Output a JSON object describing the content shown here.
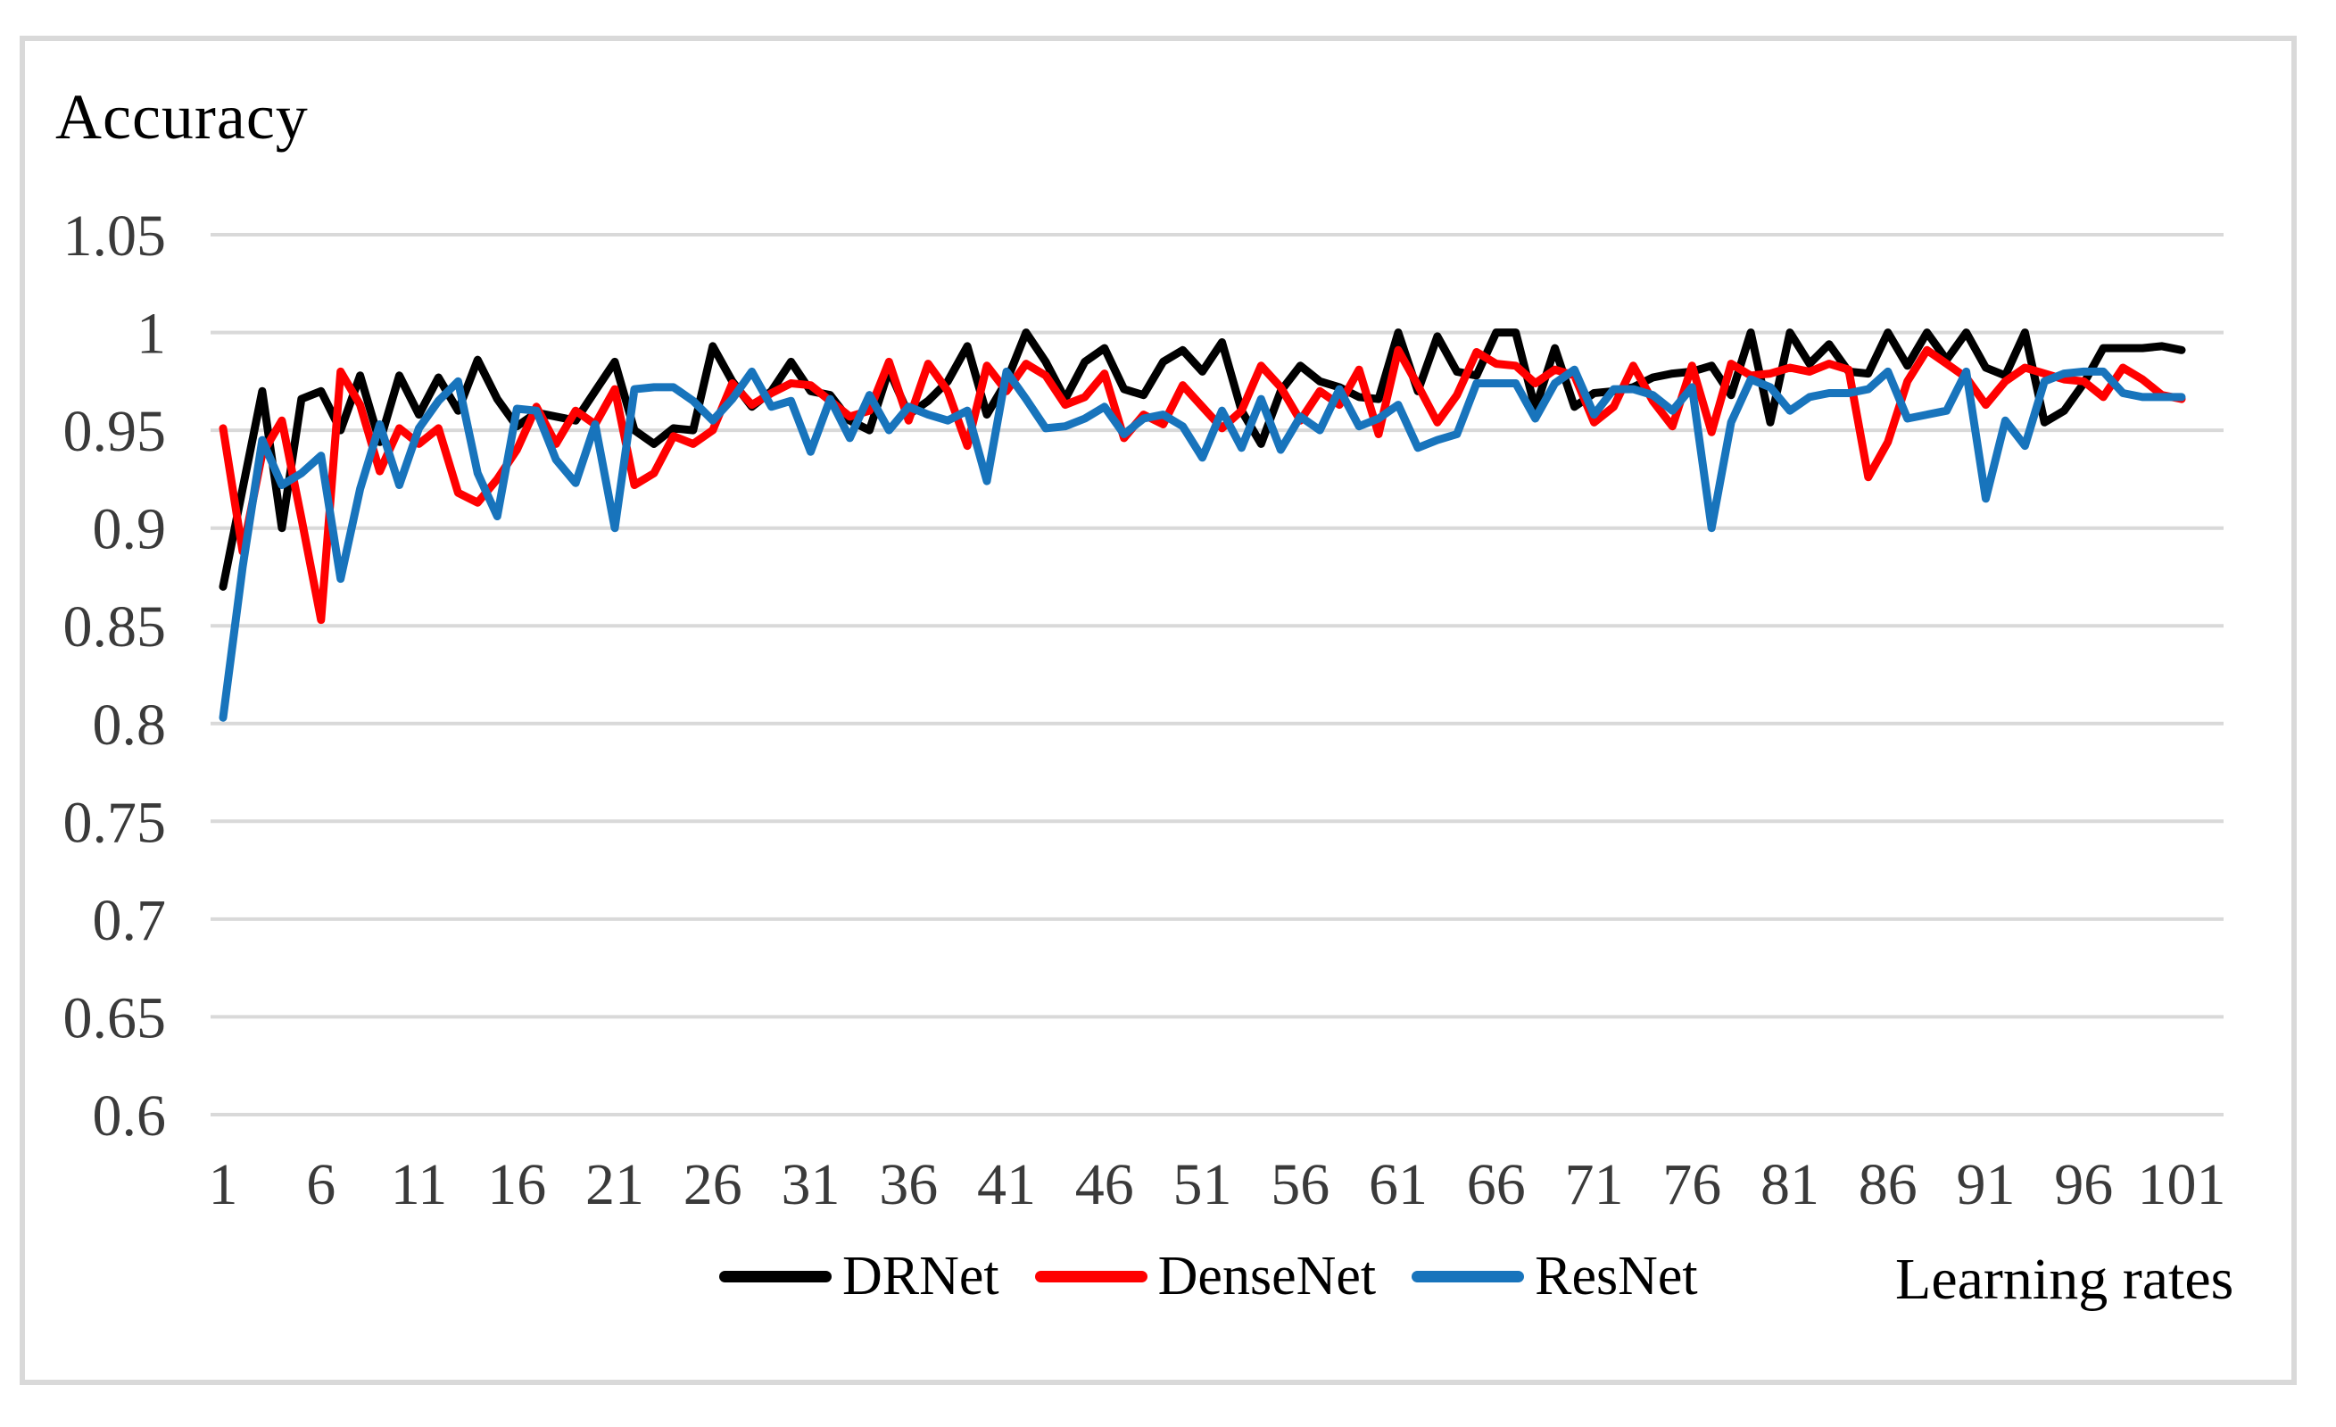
{
  "figure": {
    "title": "Accuracy",
    "x_axis_title": "Learning rates"
  },
  "chart_data": {
    "type": "line",
    "title": "Accuracy",
    "xlabel": "Learning rates",
    "ylabel": "Accuracy",
    "xlim": [
      1,
      101
    ],
    "ylim": [
      0.6,
      1.05
    ],
    "grid": "horizontal",
    "legend_position": "bottom-center",
    "x_ticks": [
      1,
      6,
      11,
      16,
      21,
      26,
      31,
      36,
      41,
      46,
      51,
      56,
      61,
      66,
      71,
      76,
      81,
      86,
      91,
      96,
      101
    ],
    "y_ticks": [
      1.05,
      1.0,
      0.95,
      0.9,
      0.85,
      0.8,
      0.75,
      0.7,
      0.65,
      0.6
    ],
    "y_tick_labels": [
      "1.05",
      "1",
      "0.95",
      "0.9",
      "0.85",
      "0.8",
      "0.75",
      "0.7",
      "0.65",
      "0.6"
    ],
    "x_start": 1,
    "x_step": 1,
    "colors": {
      "grid": "#d9d9d9",
      "tick_text": "#3a3a3a",
      "border": "#d9d9d9"
    },
    "series": [
      {
        "name": "DRNet",
        "color": "#000000",
        "values": [
          0.87,
          0.92,
          0.97,
          0.9,
          0.966,
          0.97,
          0.95,
          0.978,
          0.944,
          0.978,
          0.958,
          0.977,
          0.96,
          0.986,
          0.966,
          0.952,
          0.959,
          0.957,
          0.955,
          0.97,
          0.985,
          0.95,
          0.943,
          0.951,
          0.95,
          0.993,
          0.975,
          0.962,
          0.97,
          0.985,
          0.97,
          0.968,
          0.955,
          0.95,
          0.981,
          0.958,
          0.965,
          0.975,
          0.993,
          0.958,
          0.975,
          1.0,
          0.985,
          0.966,
          0.985,
          0.992,
          0.971,
          0.968,
          0.985,
          0.991,
          0.98,
          0.995,
          0.96,
          0.943,
          0.97,
          0.983,
          0.975,
          0.972,
          0.967,
          0.966,
          1.0,
          0.97,
          0.998,
          0.98,
          0.978,
          1.0,
          1.0,
          0.961,
          0.992,
          0.962,
          0.969,
          0.97,
          0.972,
          0.977,
          0.979,
          0.98,
          0.983,
          0.968,
          1.0,
          0.954,
          1.0,
          0.984,
          0.994,
          0.98,
          0.979,
          1.0,
          0.983,
          1.0,
          0.986,
          1.0,
          0.982,
          0.978,
          1.0,
          0.954,
          0.96,
          0.974,
          0.992,
          0.992,
          0.992,
          0.993,
          0.991
        ]
      },
      {
        "name": "DenseNet",
        "color": "#ff0000",
        "values": [
          0.951,
          0.888,
          0.938,
          0.955,
          0.905,
          0.853,
          0.98,
          0.963,
          0.929,
          0.951,
          0.943,
          0.951,
          0.918,
          0.913,
          0.925,
          0.94,
          0.962,
          0.943,
          0.96,
          0.953,
          0.971,
          0.922,
          0.928,
          0.947,
          0.943,
          0.95,
          0.974,
          0.963,
          0.969,
          0.974,
          0.973,
          0.965,
          0.957,
          0.96,
          0.985,
          0.955,
          0.984,
          0.97,
          0.942,
          0.983,
          0.97,
          0.984,
          0.978,
          0.963,
          0.967,
          0.979,
          0.946,
          0.958,
          0.953,
          0.973,
          0.962,
          0.951,
          0.96,
          0.983,
          0.972,
          0.955,
          0.97,
          0.963,
          0.981,
          0.948,
          0.991,
          0.973,
          0.954,
          0.968,
          0.99,
          0.984,
          0.983,
          0.974,
          0.981,
          0.978,
          0.954,
          0.962,
          0.983,
          0.965,
          0.952,
          0.983,
          0.949,
          0.984,
          0.978,
          0.979,
          0.982,
          0.98,
          0.984,
          0.981,
          0.926,
          0.944,
          0.975,
          0.991,
          0.984,
          0.977,
          0.963,
          0.975,
          0.982,
          0.979,
          0.976,
          0.975,
          0.967,
          0.982,
          0.976,
          0.968,
          0.966
        ]
      },
      {
        "name": "ResNet",
        "color": "#1874bc",
        "values": [
          0.803,
          0.88,
          0.945,
          0.922,
          0.928,
          0.937,
          0.874,
          0.92,
          0.953,
          0.922,
          0.951,
          0.965,
          0.975,
          0.928,
          0.906,
          0.961,
          0.96,
          0.935,
          0.923,
          0.953,
          0.9,
          0.971,
          0.972,
          0.972,
          0.965,
          0.955,
          0.966,
          0.98,
          0.962,
          0.965,
          0.939,
          0.966,
          0.946,
          0.968,
          0.95,
          0.962,
          0.958,
          0.955,
          0.96,
          0.924,
          0.98,
          0.966,
          0.951,
          0.952,
          0.956,
          0.962,
          0.948,
          0.956,
          0.958,
          0.952,
          0.936,
          0.96,
          0.941,
          0.966,
          0.94,
          0.957,
          0.95,
          0.971,
          0.952,
          0.956,
          0.963,
          0.941,
          0.945,
          0.948,
          0.974,
          0.974,
          0.974,
          0.956,
          0.974,
          0.981,
          0.958,
          0.971,
          0.971,
          0.968,
          0.96,
          0.972,
          0.9,
          0.954,
          0.976,
          0.972,
          0.96,
          0.967,
          0.969,
          0.969,
          0.971,
          0.98,
          0.956,
          0.958,
          0.96,
          0.98,
          0.915,
          0.955,
          0.942,
          0.975,
          0.979,
          0.98,
          0.98,
          0.969,
          0.967,
          0.967,
          0.967
        ]
      }
    ]
  }
}
